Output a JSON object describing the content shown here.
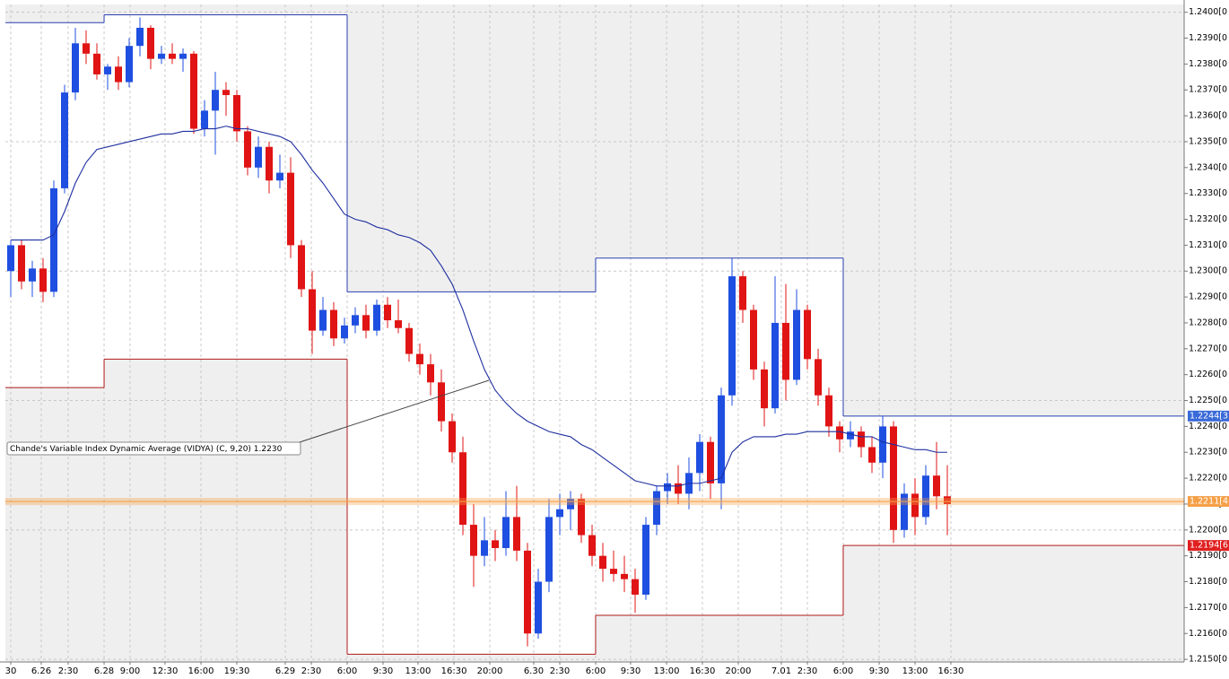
{
  "chart_data": {
    "type": "candlestick",
    "ylim": [
      1.2149,
      1.2403
    ],
    "yticks": [
      {
        "value": 1.215,
        "label": "1.2150[0"
      },
      {
        "value": 1.216,
        "label": "1.2160[0"
      },
      {
        "value": 1.217,
        "label": "1.2170[0"
      },
      {
        "value": 1.218,
        "label": "1.2180[0"
      },
      {
        "value": 1.219,
        "label": "1.2190[0"
      },
      {
        "value": 1.22,
        "label": "1.2200[0"
      },
      {
        "value": 1.221,
        "label": "1.2210[0"
      },
      {
        "value": 1.222,
        "label": "1.2220[0"
      },
      {
        "value": 1.223,
        "label": "1.2230[0"
      },
      {
        "value": 1.224,
        "label": "1.2240[0"
      },
      {
        "value": 1.225,
        "label": "1.2250[0"
      },
      {
        "value": 1.226,
        "label": "1.2260[0"
      },
      {
        "value": 1.227,
        "label": "1.2270[0"
      },
      {
        "value": 1.228,
        "label": "1.2280[0"
      },
      {
        "value": 1.229,
        "label": "1.2290[0"
      },
      {
        "value": 1.23,
        "label": "1.2300[0"
      },
      {
        "value": 1.231,
        "label": "1.2310[0"
      },
      {
        "value": 1.232,
        "label": "1.2320[0"
      },
      {
        "value": 1.233,
        "label": "1.2330[0"
      },
      {
        "value": 1.234,
        "label": "1.2340[0"
      },
      {
        "value": 1.235,
        "label": "1.2350[0"
      },
      {
        "value": 1.236,
        "label": "1.2360[0"
      },
      {
        "value": 1.237,
        "label": "1.2370[0"
      },
      {
        "value": 1.238,
        "label": "1.2380[0"
      },
      {
        "value": 1.239,
        "label": "1.2390[0"
      },
      {
        "value": 1.24,
        "label": "1.2400[0"
      }
    ],
    "xlim": [
      -0.5,
      109
    ],
    "xticks": [
      {
        "value": 0,
        "label": "30"
      },
      {
        "value": 2.83,
        "label": "6.26"
      },
      {
        "value": 5.33,
        "label": "2:30"
      },
      {
        "value": 8.67,
        "label": "6.28"
      },
      {
        "value": 11.08,
        "label": "9:00"
      },
      {
        "value": 14.33,
        "label": "12:30"
      },
      {
        "value": 17.67,
        "label": "16:00"
      },
      {
        "value": 21,
        "label": "19:30"
      },
      {
        "value": 25.5,
        "label": "6.29"
      },
      {
        "value": 27.92,
        "label": "2:30"
      },
      {
        "value": 31.25,
        "label": "6:00"
      },
      {
        "value": 34.58,
        "label": "9:30"
      },
      {
        "value": 37.83,
        "label": "13:00"
      },
      {
        "value": 41.17,
        "label": "16:30"
      },
      {
        "value": 44.5,
        "label": "20:00"
      },
      {
        "value": 48.58,
        "label": "6.30"
      },
      {
        "value": 51,
        "label": "2:30"
      },
      {
        "value": 54.33,
        "label": "6:00"
      },
      {
        "value": 57.58,
        "label": "9:30"
      },
      {
        "value": 60.92,
        "label": "13:00"
      },
      {
        "value": 64.25,
        "label": "16:30"
      },
      {
        "value": 67.58,
        "label": "20:00"
      },
      {
        "value": 71.58,
        "label": "7.01"
      },
      {
        "value": 74,
        "label": "2:30"
      },
      {
        "value": 77.33,
        "label": "6:00"
      },
      {
        "value": 80.67,
        "label": "9:30"
      },
      {
        "value": 84,
        "label": "13:00"
      },
      {
        "value": 87.33,
        "label": "16:30"
      }
    ],
    "up_color": "#1f4fe0",
    "down_color": "#e01414",
    "open": [
      1.23,
      1.231,
      1.2296,
      1.2301,
      1.2292,
      1.2332,
      1.2369,
      1.2388,
      1.2384,
      1.2376,
      1.2379,
      1.2373,
      1.2387,
      1.2394,
      1.2382,
      1.2384,
      1.2382,
      1.2384,
      1.2355,
      1.2362,
      1.237,
      1.2368,
      1.2354,
      1.234,
      1.2348,
      1.2335,
      1.2338,
      1.231,
      1.2293,
      1.2277,
      1.2285,
      1.2274,
      1.2279,
      1.2283,
      1.2277,
      1.2287,
      1.2281,
      1.2278,
      1.2268,
      1.2264,
      1.2257,
      1.2242,
      1.223,
      1.2202,
      1.219,
      1.2196,
      1.2193,
      1.2205,
      1.2192,
      1.216,
      1.218,
      1.2205,
      1.2208,
      1.2212,
      1.2198,
      1.219,
      1.2185,
      1.2183,
      1.2181,
      1.2175,
      1.2202,
      1.2215,
      1.2218,
      1.2214,
      1.2222,
      1.2234,
      1.2218,
      1.2252,
      1.2298,
      1.2285,
      1.2262,
      1.2247,
      1.228,
      1.2258,
      1.2285,
      1.2266,
      1.2252,
      1.224,
      1.2235,
      1.2238,
      1.2232,
      1.2226,
      1.224,
      1.22,
      1.2214,
      1.2205,
      1.2221,
      1.2213
    ],
    "high": [
      1.2312,
      1.2312,
      1.2304,
      1.2305,
      1.2335,
      1.2372,
      1.2394,
      1.2393,
      1.2388,
      1.238,
      1.2383,
      1.239,
      1.2398,
      1.2395,
      1.2387,
      1.2388,
      1.2386,
      1.2385,
      1.2366,
      1.2377,
      1.2373,
      1.237,
      1.2356,
      1.2352,
      1.235,
      1.2345,
      1.2344,
      1.2312,
      1.23,
      1.229,
      1.2288,
      1.2282,
      1.2286,
      1.2287,
      1.2289,
      1.229,
      1.2289,
      1.228,
      1.2272,
      1.2268,
      1.2262,
      1.2245,
      1.2236,
      1.221,
      1.2205,
      1.22,
      1.2215,
      1.2217,
      1.2195,
      1.2185,
      1.2212,
      1.2214,
      1.2215,
      1.2214,
      1.2202,
      1.2195,
      1.2192,
      1.219,
      1.2185,
      1.2205,
      1.2217,
      1.2222,
      1.2225,
      1.2228,
      1.2237,
      1.2236,
      1.2255,
      1.2305,
      1.23,
      1.2287,
      1.2265,
      1.2298,
      1.2295,
      1.2293,
      1.2287,
      1.227,
      1.2255,
      1.2242,
      1.2242,
      1.224,
      1.2236,
      1.2244,
      1.2242,
      1.2218,
      1.222,
      1.2225,
      1.2234,
      1.2225
    ],
    "low": [
      1.229,
      1.2293,
      1.229,
      1.2288,
      1.229,
      1.233,
      1.2366,
      1.238,
      1.2374,
      1.237,
      1.237,
      1.2371,
      1.2383,
      1.2378,
      1.238,
      1.238,
      1.2377,
      1.2353,
      1.2352,
      1.2345,
      1.236,
      1.235,
      1.2337,
      1.2336,
      1.233,
      1.2332,
      1.2305,
      1.229,
      1.2268,
      1.2275,
      1.2271,
      1.2272,
      1.2276,
      1.2274,
      1.2275,
      1.2278,
      1.2276,
      1.2265,
      1.226,
      1.2252,
      1.2238,
      1.2226,
      1.2198,
      1.2178,
      1.2186,
      1.2188,
      1.219,
      1.2188,
      1.2155,
      1.2158,
      1.2176,
      1.2198,
      1.22,
      1.2195,
      1.2186,
      1.218,
      1.218,
      1.2176,
      1.2168,
      1.2173,
      1.2198,
      1.221,
      1.221,
      1.2208,
      1.2215,
      1.2212,
      1.2208,
      1.2248,
      1.228,
      1.2258,
      1.224,
      1.2245,
      1.225,
      1.2256,
      1.2262,
      1.2248,
      1.2236,
      1.223,
      1.2232,
      1.2228,
      1.2222,
      1.222,
      1.2195,
      1.2197,
      1.2198,
      1.2202,
      1.2208,
      1.2198
    ],
    "close": [
      1.231,
      1.2296,
      1.2301,
      1.2292,
      1.2332,
      1.2369,
      1.2388,
      1.2384,
      1.2376,
      1.2379,
      1.2373,
      1.2387,
      1.2394,
      1.2382,
      1.2384,
      1.2382,
      1.2384,
      1.2355,
      1.2362,
      1.237,
      1.2368,
      1.2354,
      1.234,
      1.2348,
      1.2335,
      1.2338,
      1.231,
      1.2293,
      1.2277,
      1.2285,
      1.2274,
      1.2279,
      1.2283,
      1.2277,
      1.2287,
      1.2281,
      1.2278,
      1.2268,
      1.2264,
      1.2257,
      1.2242,
      1.223,
      1.2202,
      1.219,
      1.2196,
      1.2193,
      1.2205,
      1.2192,
      1.216,
      1.218,
      1.2205,
      1.2208,
      1.2212,
      1.2198,
      1.219,
      1.2185,
      1.2183,
      1.2181,
      1.2175,
      1.2202,
      1.2215,
      1.2218,
      1.2214,
      1.2222,
      1.2234,
      1.2218,
      1.2252,
      1.2298,
      1.2285,
      1.2262,
      1.2247,
      1.228,
      1.2258,
      1.2285,
      1.2266,
      1.2252,
      1.224,
      1.2235,
      1.2238,
      1.2232,
      1.2226,
      1.224,
      1.22,
      1.2214,
      1.2205,
      1.2221,
      1.2213,
      1.221
    ],
    "vidya": {
      "color": "#1f2fa0",
      "values": [
        1.2312,
        1.2312,
        1.2312,
        1.2312,
        1.2314,
        1.2323,
        1.2334,
        1.2342,
        1.2347,
        1.2348,
        1.2349,
        1.235,
        1.2351,
        1.2352,
        1.2353,
        1.2353,
        1.2354,
        1.2354,
        1.2355,
        1.2355,
        1.2356,
        1.2355,
        1.2355,
        1.2354,
        1.2353,
        1.2352,
        1.235,
        1.2345,
        1.2339,
        1.2334,
        1.2328,
        1.2322,
        1.232,
        1.2319,
        1.2317,
        1.2316,
        1.2314,
        1.2313,
        1.2311,
        1.2308,
        1.2302,
        1.2295,
        1.2285,
        1.2273,
        1.2262,
        1.2254,
        1.2249,
        1.2245,
        1.2242,
        1.224,
        1.2238,
        1.2237,
        1.2236,
        1.2233,
        1.2231,
        1.2228,
        1.2225,
        1.2222,
        1.2219,
        1.2218,
        1.2217,
        1.2217,
        1.2217,
        1.2218,
        1.2218,
        1.2219,
        1.222,
        1.223,
        1.2234,
        1.2236,
        1.2236,
        1.2236,
        1.2237,
        1.2237,
        1.2238,
        1.2238,
        1.2238,
        1.2238,
        1.2237,
        1.2236,
        1.2236,
        1.2234,
        1.2233,
        1.2232,
        1.2231,
        1.2231,
        1.223,
        1.223
      ]
    },
    "days": [
      {
        "start": -0.5,
        "high": 1.2396,
        "low": 1.2255
      },
      {
        "start": 8.67,
        "high": 1.2399,
        "low": 1.2266
      },
      {
        "start": 31.25,
        "high": 1.2292,
        "low": 1.2152
      },
      {
        "start": 54.33,
        "high": 1.2305,
        "low": 1.2167
      },
      {
        "start": 77.33,
        "high": 1.2244,
        "low": 1.2194
      }
    ],
    "range_color": "#2840b0",
    "low_color": "#b01818",
    "price_markers": [
      {
        "value": 1.2244,
        "label": "1.2244[3",
        "color": "#3a6ad8",
        "line": false
      },
      {
        "value": 1.2211,
        "label": "1.2211[4",
        "color": "#f5a048",
        "line": true
      },
      {
        "value": 1.2194,
        "label": "1.2194[6",
        "color": "#e02020",
        "line": false
      }
    ],
    "annotation": "Chande's Variable Index Dynamic Average (VIDYA) (C, 9,20) 1.2230"
  }
}
